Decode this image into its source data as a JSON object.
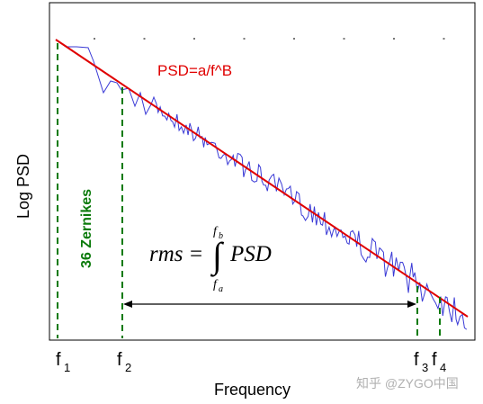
{
  "chart_data": {
    "type": "line",
    "title": "",
    "xlabel": "Frequency",
    "ylabel": "Log PSD",
    "x_scale": "log",
    "y_scale": "log",
    "grid": false,
    "series": [
      {
        "name": "PSD",
        "kind": "measured-noisy",
        "color": "#3a3ad6"
      },
      {
        "name": "fit",
        "kind": "power-law",
        "color": "#e00000"
      }
    ],
    "fit_label": "PSD=a/f^B",
    "markers": [
      {
        "id": "f1",
        "base": "f",
        "sub": "1",
        "color": "#0a7a0a"
      },
      {
        "id": "f2",
        "base": "f",
        "sub": "2",
        "color": "#0a7a0a"
      },
      {
        "id": "f3",
        "base": "f",
        "sub": "3",
        "color": "#0a7a0a"
      },
      {
        "id": "f4",
        "base": "f",
        "sub": "4",
        "color": "#0a7a0a"
      }
    ],
    "zernike_label": "36 Zernikes",
    "equation": {
      "lhs": "rms",
      "eq": "=",
      "integrand": "PSD",
      "lower": "f",
      "lower_sub": "a",
      "upper": "f",
      "upper_sub": "b"
    }
  },
  "watermark": "知乎 @ZYGO中国",
  "colors": {
    "fit": "#e00000",
    "data": "#3a3ad6",
    "marker": "#0a7a0a",
    "axis": "#000000"
  }
}
